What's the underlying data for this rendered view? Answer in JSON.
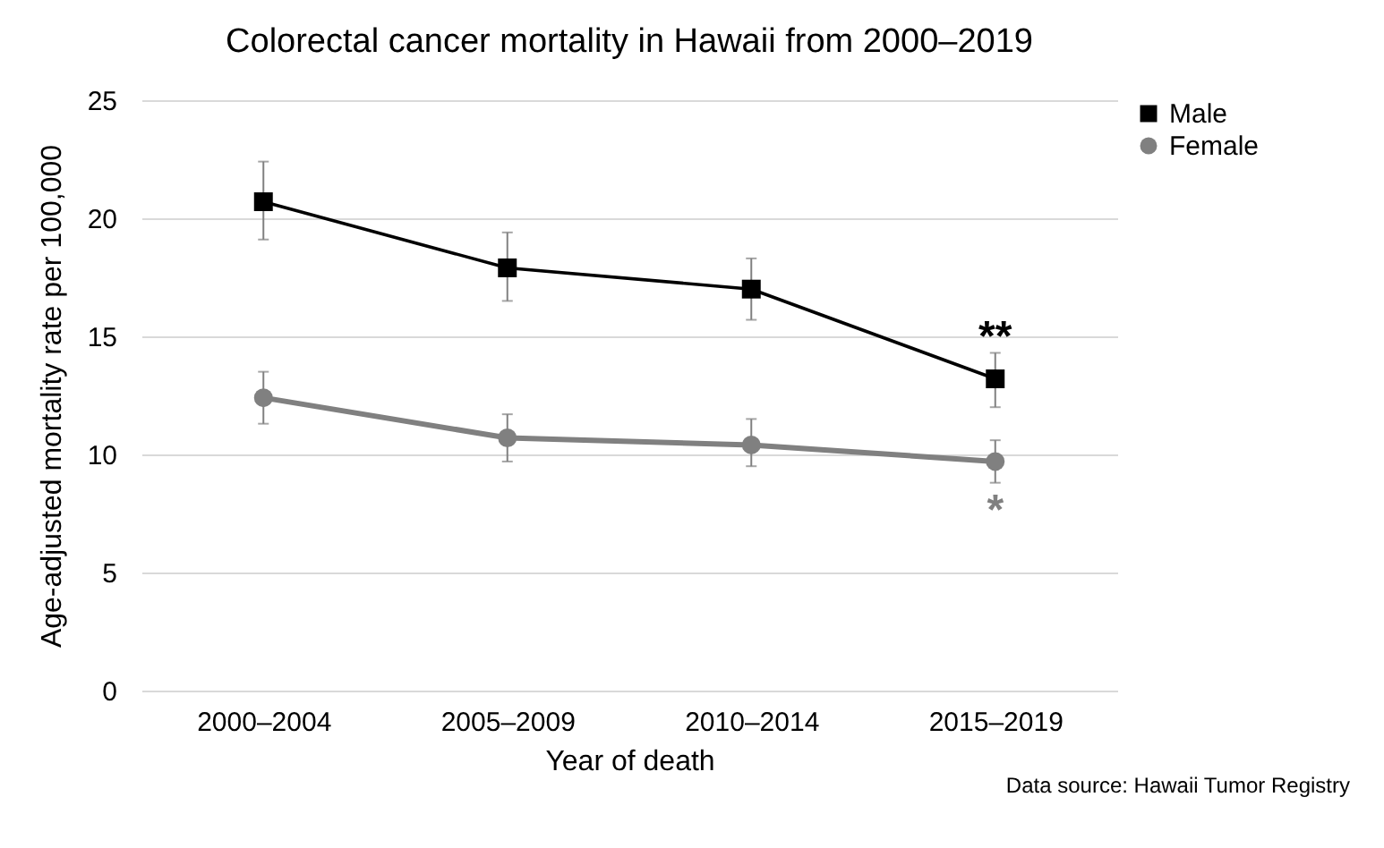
{
  "chart_data": {
    "type": "line",
    "title": "Colorectal cancer mortality in Hawaii from 2000–2019",
    "xlabel": "Year of death",
    "ylabel": "Age-adjusted mortality rate per 100,000",
    "categories": [
      "2000–2004",
      "2005–2009",
      "2010–2014",
      "2015–2019"
    ],
    "series": [
      {
        "name": "Male",
        "color": "#000000",
        "marker": "square",
        "values": [
          20.7,
          17.9,
          17.0,
          13.2
        ],
        "errors": [
          [
            19.1,
            22.4
          ],
          [
            16.5,
            19.4
          ],
          [
            15.7,
            18.3
          ],
          [
            12.0,
            14.3
          ]
        ]
      },
      {
        "name": "Female",
        "color": "#808080",
        "marker": "circle",
        "values": [
          12.4,
          10.7,
          10.4,
          9.7
        ],
        "errors": [
          [
            11.3,
            13.5
          ],
          [
            9.7,
            11.7
          ],
          [
            9.5,
            11.5
          ],
          [
            8.8,
            10.6
          ]
        ]
      }
    ],
    "ylim": [
      0,
      25
    ],
    "yticks": [
      0,
      5,
      10,
      15,
      20,
      25
    ],
    "grid": "y",
    "legend": "right",
    "annotations": [
      "**",
      "*",
      "Data source: Hawaii Tumor Registry"
    ]
  }
}
